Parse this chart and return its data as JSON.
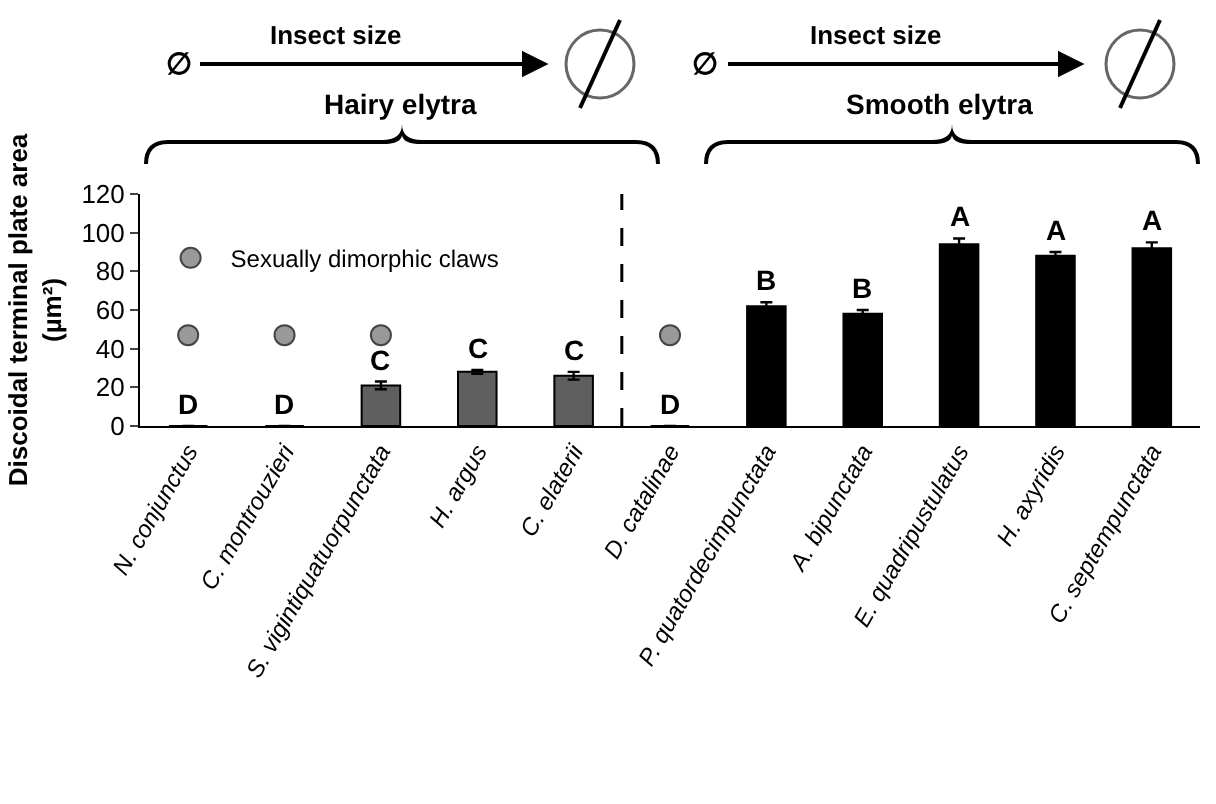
{
  "chart_data": {
    "type": "bar",
    "ylabel": "Discoidal terminal plate area (µm²)",
    "categories": [
      "N. conjunctus",
      "C. montrouzieri",
      "S. vigintiquatuorpunctata",
      "H. argus",
      "C. elaterii",
      "D. catalinae",
      "P. quatordecimpunctata",
      "A. bipunctata",
      "E. quadripustulatus",
      "H. axyridis",
      "C. septempunctata"
    ],
    "series": [
      {
        "values": [
          0,
          0,
          21,
          28,
          26,
          0,
          62,
          58,
          94,
          88,
          92
        ],
        "colors": [
          "#5f5f5f",
          "#5f5f5f",
          "#5f5f5f",
          "#5f5f5f",
          "#5f5f5f",
          "#000000",
          "#000000",
          "#000000",
          "#000000",
          "#000000",
          "#000000"
        ],
        "errors": [
          null,
          null,
          2,
          1,
          2,
          null,
          2,
          2,
          3,
          2,
          3
        ]
      },
      {
        "type": "scatter",
        "name": "Sexually dimorphic claws",
        "color": "#999999",
        "x": [
          "N. conjunctus",
          "C. montrouzieri",
          "S. vigintiquatuorpunctata",
          "D. catalinae"
        ],
        "values": [
          47,
          47,
          47,
          47
        ]
      }
    ],
    "ylim": [
      0,
      120
    ],
    "yticks": [
      0,
      20,
      40,
      60,
      80,
      100,
      120
    ],
    "grid": false,
    "legend": "top left",
    "marker": "circle",
    "annotations": [
      {
        "text": "D",
        "x": "N. conjunctus",
        "y": 0
      },
      {
        "text": "D",
        "x": "C. montrouzieri",
        "y": 0
      },
      {
        "text": "C",
        "x": "S. vigintiquatuorpunctata",
        "y": 23
      },
      {
        "text": "C",
        "x": "H. argus",
        "y": 29
      },
      {
        "text": "C",
        "x": "C. elaterii",
        "y": 28
      },
      {
        "text": "D",
        "x": "D. catalinae",
        "y": 0
      },
      {
        "text": "B",
        "x": "P. quatordecimpunctata",
        "y": 64
      },
      {
        "text": "B",
        "x": "A. bipunctata",
        "y": 60
      },
      {
        "text": "A",
        "x": "E. quadripustulatus",
        "y": 97
      },
      {
        "text": "A",
        "x": "H. axyridis",
        "y": 90
      },
      {
        "text": "A",
        "x": "C. septempunctata",
        "y": 95
      },
      "Hairy elytra",
      "Smooth elytra",
      "Insect size",
      "Insect size",
      "∅",
      "∅"
    ]
  }
}
